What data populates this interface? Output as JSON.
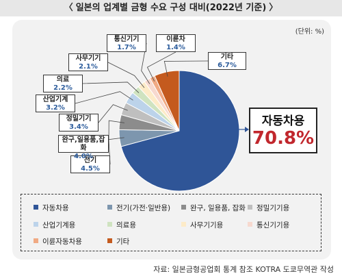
{
  "title": "일본의 업계별 금형 수요 구성 대비(2022년 기준)",
  "title_left_bracket": "〈",
  "title_right_bracket": "〉",
  "unit": "(단위: %)",
  "source": "자료: 일본금형공업회 통계 참조 KOTRA 도쿄무역관 작성",
  "chart_data": {
    "type": "pie",
    "title": "일본의 업계별 금형 수요 구성 대비(2022년 기준)",
    "unit": "%",
    "slices": [
      {
        "label": "자동차용",
        "value": 70.8,
        "value_text": "70.8%",
        "color": "#2f5597"
      },
      {
        "label": "전기(가전·일반용)",
        "short_label": "전기",
        "value": 4.5,
        "value_text": "4.5%",
        "color": "#7d96ae"
      },
      {
        "label": "완구, 일용품, 잡화",
        "short_label": "완구,일용품,잡화",
        "value": 4.0,
        "value_text": "4.0%",
        "color": "#8c8c8c"
      },
      {
        "label": "정밀기기용",
        "short_label": "정밀기기",
        "value": 3.4,
        "value_text": "3.4%",
        "color": "#bfbfbf"
      },
      {
        "label": "산업기계용",
        "short_label": "산업기계",
        "value": 3.2,
        "value_text": "3.2%",
        "color": "#bcd3ea"
      },
      {
        "label": "의료용",
        "short_label": "의료",
        "value": 2.2,
        "value_text": "2.2%",
        "color": "#cfe3c0"
      },
      {
        "label": "사무기기용",
        "short_label": "사무기기",
        "value": 2.1,
        "value_text": "2.1%",
        "color": "#fdebc8"
      },
      {
        "label": "통신기기용",
        "short_label": "통신기기",
        "value": 1.7,
        "value_text": "1.7%",
        "color": "#f7d9cf"
      },
      {
        "label": "이륜자동차용",
        "short_label": "이륜차",
        "value": 1.4,
        "value_text": "1.4%",
        "color": "#f0aa84"
      },
      {
        "label": "기타",
        "short_label": "기타",
        "value": 6.7,
        "value_text": "6.7%",
        "color": "#c45a1e"
      }
    ]
  }
}
